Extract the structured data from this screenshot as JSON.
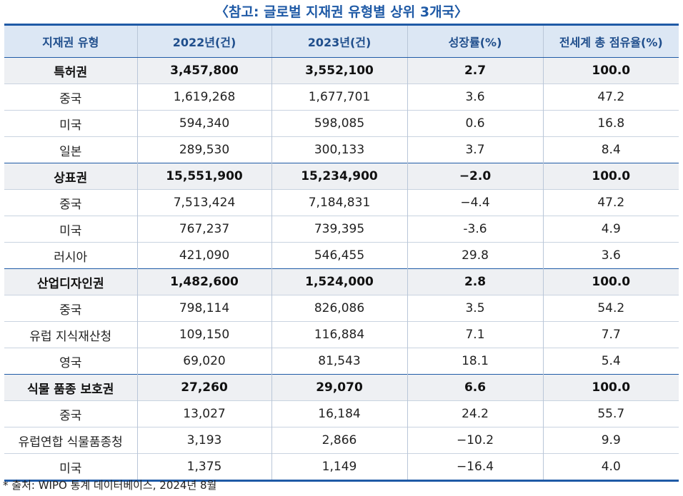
{
  "header": {
    "title": "〈참고: 글로벌 지재권 유형별 상위 3개국〉"
  },
  "table": {
    "columns": [
      "지재권 유형",
      "2022년(건)",
      "2023년(건)",
      "성장률(%)",
      "전세계 총 점유율(%)"
    ],
    "groups": [
      {
        "row": [
          "특허권",
          "3,457,800",
          "3,552,100",
          "2.7",
          "100.0"
        ],
        "rows": [
          [
            "중국",
            "1,619,268",
            "1,677,701",
            "3.6",
            "47.2"
          ],
          [
            "미국",
            "594,340",
            "598,085",
            "0.6",
            "16.8"
          ],
          [
            "일본",
            "289,530",
            "300,133",
            "3.7",
            "8.4"
          ]
        ]
      },
      {
        "row": [
          "상표권",
          "15,551,900",
          "15,234,900",
          "−2.0",
          "100.0"
        ],
        "rows": [
          [
            "중국",
            "7,513,424",
            "7,184,831",
            "−4.4",
            "47.2"
          ],
          [
            "미국",
            "767,237",
            "739,395",
            "-3.6",
            "4.9"
          ],
          [
            "러시아",
            "421,090",
            "546,455",
            "29.8",
            "3.6"
          ]
        ]
      },
      {
        "row": [
          "산업디자인권",
          "1,482,600",
          "1,524,000",
          "2.8",
          "100.0"
        ],
        "rows": [
          [
            "중국",
            "798,114",
            "826,086",
            "3.5",
            "54.2"
          ],
          [
            "유럽 지식재산청",
            "109,150",
            "116,884",
            "7.1",
            "7.7"
          ],
          [
            "영국",
            "69,020",
            "81,543",
            "18.1",
            "5.4"
          ]
        ]
      },
      {
        "row": [
          "식물 품종 보호권",
          "27,260",
          "29,070",
          "6.6",
          "100.0"
        ],
        "rows": [
          [
            "중국",
            "13,027",
            "16,184",
            "24.2",
            "55.7"
          ],
          [
            "유럽연합 식물품종청",
            "3,193",
            "2,866",
            "−10.2",
            "9.9"
          ],
          [
            "미국",
            "1,375",
            "1,149",
            "−16.4",
            "4.0"
          ]
        ]
      }
    ]
  },
  "footnote": "* 출처: WIPO 통계 데이터베이스, 2024년 8월"
}
